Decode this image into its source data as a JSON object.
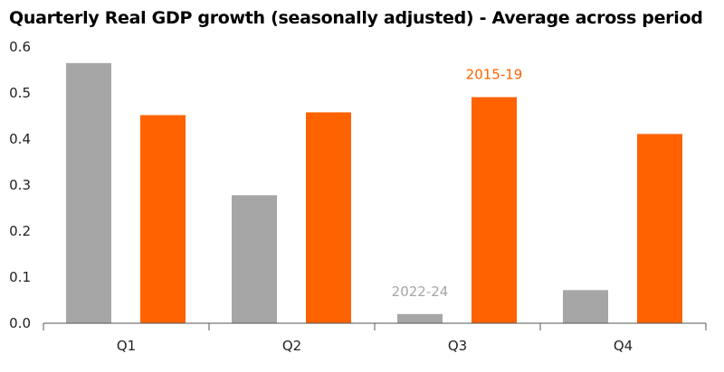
{
  "chart_data": {
    "type": "bar",
    "title": "Quarterly Real GDP growth (seasonally adjusted) - Average across period",
    "xlabel": "",
    "ylabel": "",
    "categories": [
      "Q1",
      "Q2",
      "Q3",
      "Q4"
    ],
    "ylim": [
      0,
      0.6
    ],
    "yticks": [
      "0.0",
      "0.1",
      "0.2",
      "0.3",
      "0.4",
      "0.5",
      "0.6"
    ],
    "grid": false,
    "legend": "inline labels",
    "series": [
      {
        "name": "2022-24",
        "color": "#a6a6a6",
        "label_color": "#a6a6a6",
        "values": [
          0.565,
          0.278,
          0.02,
          0.072
        ]
      },
      {
        "name": "2015-19",
        "color": "#ff6200",
        "label_color": "#ff6200",
        "values": [
          0.452,
          0.458,
          0.491,
          0.411
        ]
      }
    ]
  }
}
